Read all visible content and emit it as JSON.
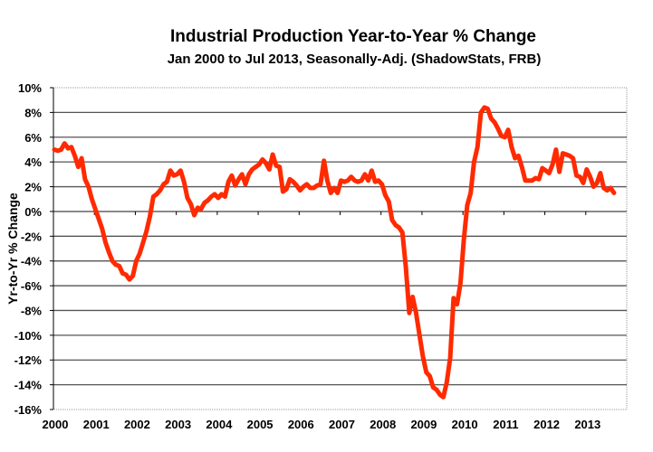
{
  "chart_data": {
    "type": "line",
    "title": "Industrial Production Year-to-Year % Change",
    "subtitle": "Jan 2000 to Jul 2013, Seasonally-Adj. (ShadowStats, FRB)",
    "xlabel": "",
    "ylabel": "Yr-to-Yr % Change",
    "ylim": [
      -16,
      10
    ],
    "xlim": [
      "2000-01",
      "2013-12"
    ],
    "grid": true,
    "legend": "none",
    "y_ticks": [
      "10%",
      "8%",
      "6%",
      "4%",
      "2%",
      "0%",
      "-2%",
      "-4%",
      "-6%",
      "-8%",
      "-10%",
      "-12%",
      "-14%",
      "-16%"
    ],
    "y_tick_values": [
      10,
      8,
      6,
      4,
      2,
      0,
      -2,
      -4,
      -6,
      -8,
      -10,
      -12,
      -14,
      -16
    ],
    "x_ticks": [
      "2000",
      "2001",
      "2002",
      "2003",
      "2004",
      "2005",
      "2006",
      "2007",
      "2008",
      "2009",
      "2010",
      "2011",
      "2012",
      "2013"
    ],
    "series": [
      {
        "name": "Industrial Production Yr-to-Yr % Change",
        "color": "#ff2a00",
        "start": "2000-01",
        "frequency": "monthly",
        "values": [
          5.0,
          4.9,
          5.0,
          5.5,
          5.1,
          5.2,
          4.5,
          3.6,
          4.3,
          2.6,
          2.0,
          1.0,
          0.2,
          -0.6,
          -1.4,
          -2.5,
          -3.3,
          -4.0,
          -4.3,
          -4.4,
          -5.0,
          -5.1,
          -5.5,
          -5.2,
          -4.0,
          -3.4,
          -2.5,
          -1.6,
          -0.4,
          1.2,
          1.4,
          1.7,
          2.2,
          2.4,
          3.3,
          2.9,
          3.0,
          3.3,
          2.4,
          1.1,
          0.6,
          -0.3,
          0.3,
          0.2,
          0.7,
          0.9,
          1.2,
          1.4,
          1.1,
          1.4,
          1.2,
          2.4,
          2.9,
          2.1,
          2.6,
          3.0,
          2.2,
          3.0,
          3.4,
          3.6,
          3.8,
          4.2,
          3.9,
          3.4,
          4.6,
          3.7,
          3.6,
          1.6,
          1.8,
          2.6,
          2.4,
          2.1,
          1.7,
          2.0,
          2.2,
          1.9,
          1.9,
          2.1,
          2.2,
          4.1,
          2.5,
          1.5,
          1.9,
          1.5,
          2.5,
          2.4,
          2.5,
          2.8,
          2.5,
          2.4,
          2.5,
          3.0,
          2.5,
          3.3,
          2.4,
          2.5,
          2.2,
          1.3,
          0.8,
          -0.7,
          -1.1,
          -1.3,
          -1.7,
          -4.5,
          -8.2,
          -6.9,
          -8.2,
          -10.0,
          -11.7,
          -13.0,
          -13.3,
          -14.2,
          -14.4,
          -14.8,
          -15.0,
          -13.8,
          -11.8,
          -7.0,
          -7.5,
          -5.8,
          -2.3,
          0.5,
          1.5,
          4.0,
          5.2,
          8.0,
          8.4,
          8.3,
          7.5,
          7.2,
          6.7,
          6.1,
          6.0,
          6.6,
          5.2,
          4.3,
          4.5,
          3.6,
          2.5,
          2.5,
          2.5,
          2.7,
          2.6,
          3.5,
          3.3,
          3.1,
          3.8,
          5.0,
          3.2,
          4.7,
          4.6,
          4.5,
          4.3,
          2.9,
          2.8,
          2.3,
          3.4,
          2.8,
          2.0,
          2.3,
          3.1,
          1.9,
          1.7,
          1.9,
          1.5
        ]
      }
    ]
  }
}
